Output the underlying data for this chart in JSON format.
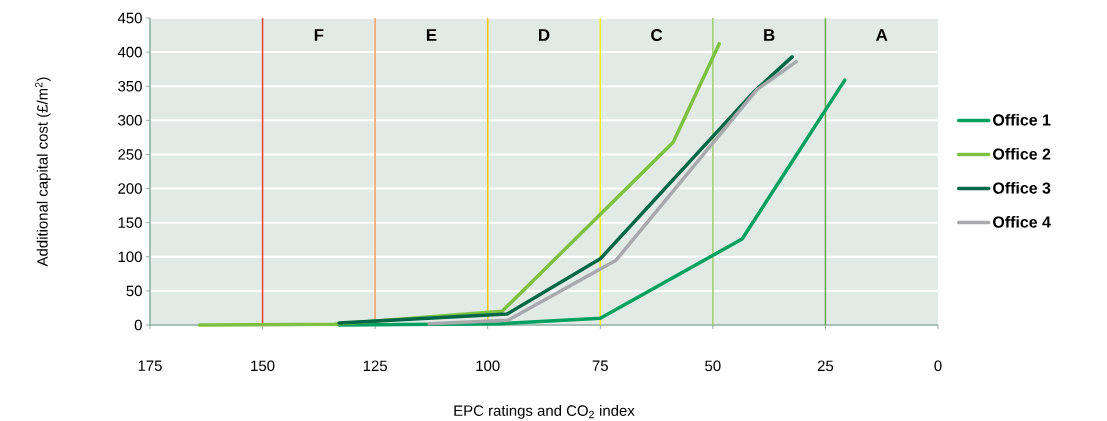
{
  "chart_data": {
    "type": "line",
    "xlabel": "EPC ratings and CO$_{2}$ index",
    "ylabel": "Additional capital cost (£/m$^{2}$)",
    "xlim": [
      175,
      0
    ],
    "xticks": [
      175,
      150,
      125,
      100,
      75,
      50,
      25,
      0
    ],
    "ylim": [
      0,
      450
    ],
    "yticks": [
      0,
      50,
      100,
      150,
      200,
      250,
      300,
      350,
      400,
      450
    ],
    "grid": "y",
    "legend": "right",
    "line_style": "solid",
    "marker": "none",
    "series": [
      {
        "name": "Office 1",
        "color": "#00a160",
        "x": [
          133,
          97,
          75,
          43.5,
          20.7
        ],
        "values": [
          0,
          2,
          10,
          126,
          359
        ]
      },
      {
        "name": "Office 2",
        "color": "#7dc142",
        "x": [
          164,
          134,
          96.8,
          58.8,
          48.6
        ],
        "values": [
          0,
          1,
          20,
          268,
          412
        ]
      },
      {
        "name": "Office 3",
        "color": "#006847",
        "x": [
          133,
          95.7,
          75,
          41,
          32.4
        ],
        "values": [
          3,
          16,
          97,
          341,
          393
        ]
      },
      {
        "name": "Office 4",
        "color": "#a7a9ac",
        "x": [
          113,
          95.5,
          71.5,
          40.2,
          31.5
        ],
        "values": [
          2,
          7,
          95,
          345,
          386
        ]
      }
    ],
    "ref_lines": [
      {
        "axis": "x",
        "value": 150,
        "color": "#e8412c"
      },
      {
        "axis": "x",
        "value": 125,
        "color": "#f7a35c"
      },
      {
        "axis": "x",
        "value": 100,
        "color": "#f8c600"
      },
      {
        "axis": "x",
        "value": 75,
        "color": "#f5ec1b"
      },
      {
        "axis": "x",
        "value": 50,
        "color": "#9fd16a"
      },
      {
        "axis": "x",
        "value": 25,
        "color": "#6aa84f"
      }
    ],
    "annotations": [
      "F",
      "E",
      "D",
      "C",
      "B",
      "A"
    ]
  }
}
